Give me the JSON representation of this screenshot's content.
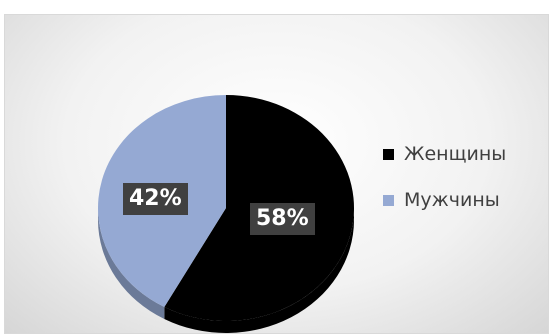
{
  "chart_data": {
    "type": "pie",
    "title": "",
    "legend_position": "right",
    "series": [
      {
        "slices": [
          {
            "name": "Женщины",
            "value": 58,
            "label": "58%",
            "color": "#000000"
          },
          {
            "name": "Мужчины",
            "value": 42,
            "label": "42%",
            "color": "#95a9d3"
          }
        ]
      }
    ]
  }
}
